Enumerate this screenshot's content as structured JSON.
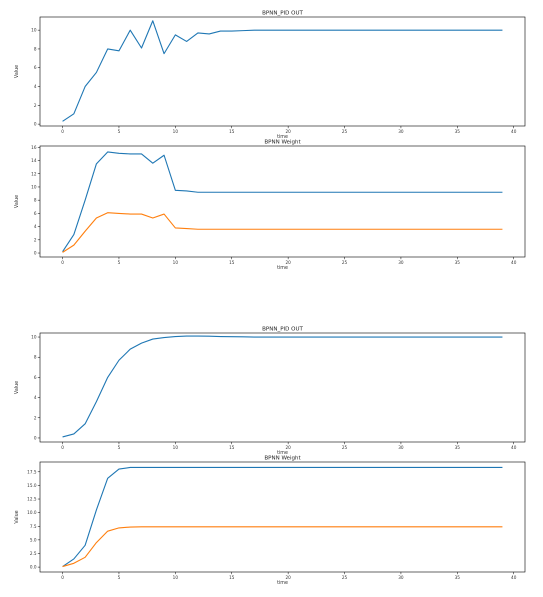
{
  "colors": {
    "series_1": "#1f77b4",
    "series_2": "#ff7f0e",
    "axes": "#000000",
    "background": "#ffffff"
  },
  "chart_data": [
    {
      "type": "line",
      "title": "BPNN_PID OUT",
      "xlabel": "time",
      "ylabel": "Value",
      "xlim": [
        -2,
        41
      ],
      "ylim": [
        -0.2,
        11.4
      ],
      "xticks": [
        0,
        5,
        10,
        15,
        20,
        25,
        30,
        35,
        40
      ],
      "yticks": [
        0,
        2,
        4,
        6,
        8,
        10
      ],
      "grid": false,
      "series": [
        {
          "values": [
            0.3,
            1.1,
            4.0,
            5.5,
            8.0,
            7.8,
            10.0,
            8.1,
            11.0,
            7.5,
            9.5,
            8.8,
            9.7,
            9.6,
            9.9,
            9.9,
            9.95,
            10.0,
            10.0,
            10.0,
            10.0,
            10.0,
            10.0,
            10.0,
            10.0,
            10.0,
            10.0,
            10.0,
            10.0,
            10.0,
            10.0,
            10.0,
            10.0,
            10.0,
            10.0,
            10.0,
            10.0,
            10.0,
            10.0,
            10.0
          ]
        }
      ]
    },
    {
      "type": "line",
      "title": "BPNN Weight",
      "xlabel": "time",
      "ylabel": "Value",
      "xlim": [
        -2,
        41
      ],
      "ylim": [
        -0.6,
        16.2
      ],
      "xticks": [
        0,
        5,
        10,
        15,
        20,
        25,
        30,
        35,
        40
      ],
      "yticks": [
        0,
        2,
        4,
        6,
        8,
        10,
        12,
        14,
        16
      ],
      "grid": false,
      "series": [
        {
          "values": [
            0.2,
            2.8,
            8.0,
            13.5,
            15.3,
            15.1,
            15.0,
            15.0,
            13.6,
            14.8,
            9.5,
            9.4,
            9.2,
            9.2,
            9.2,
            9.2,
            9.2,
            9.2,
            9.2,
            9.2,
            9.2,
            9.2,
            9.2,
            9.2,
            9.2,
            9.2,
            9.2,
            9.2,
            9.2,
            9.2,
            9.2,
            9.2,
            9.2,
            9.2,
            9.2,
            9.2,
            9.2,
            9.2,
            9.2,
            9.2
          ]
        },
        {
          "values": [
            0.1,
            1.2,
            3.3,
            5.3,
            6.1,
            6.0,
            5.9,
            5.9,
            5.3,
            5.9,
            3.8,
            3.7,
            3.6,
            3.6,
            3.6,
            3.6,
            3.6,
            3.6,
            3.6,
            3.6,
            3.6,
            3.6,
            3.6,
            3.6,
            3.6,
            3.6,
            3.6,
            3.6,
            3.6,
            3.6,
            3.6,
            3.6,
            3.6,
            3.6,
            3.6,
            3.6,
            3.6,
            3.6,
            3.6,
            3.6
          ]
        }
      ]
    },
    {
      "type": "line",
      "title": "BPNN_PID OUT",
      "xlabel": "time",
      "ylabel": "Value",
      "xlim": [
        -2,
        41
      ],
      "ylim": [
        -0.4,
        10.4
      ],
      "xticks": [
        0,
        5,
        10,
        15,
        20,
        25,
        30,
        35,
        40
      ],
      "yticks": [
        0,
        2,
        4,
        6,
        8,
        10
      ],
      "grid": false,
      "series": [
        {
          "values": [
            0.1,
            0.4,
            1.4,
            3.6,
            6.0,
            7.7,
            8.8,
            9.4,
            9.8,
            9.95,
            10.05,
            10.1,
            10.1,
            10.08,
            10.05,
            10.03,
            10.02,
            10.0,
            10.0,
            10.0,
            10.0,
            10.0,
            10.0,
            10.0,
            10.0,
            10.0,
            10.0,
            10.0,
            10.0,
            10.0,
            10.0,
            10.0,
            10.0,
            10.0,
            10.0,
            10.0,
            10.0,
            10.0,
            10.0,
            10.0
          ]
        }
      ]
    },
    {
      "type": "line",
      "title": "BPNN Weight",
      "xlabel": "time",
      "ylabel": "Value",
      "xlim": [
        -2,
        41
      ],
      "ylim": [
        -0.9,
        19.3
      ],
      "xticks": [
        0,
        5,
        10,
        15,
        20,
        25,
        30,
        35,
        40
      ],
      "yticks": [
        0.0,
        2.5,
        5.0,
        7.5,
        10.0,
        12.5,
        15.0,
        17.5
      ],
      "ytick_labels": [
        "0.0",
        "2.5",
        "5.0",
        "7.5",
        "10.0",
        "12.5",
        "15.0",
        "17.5"
      ],
      "grid": false,
      "series": [
        {
          "values": [
            0.1,
            1.5,
            4.0,
            10.5,
            16.3,
            18.0,
            18.3,
            18.3,
            18.3,
            18.3,
            18.3,
            18.3,
            18.3,
            18.3,
            18.3,
            18.3,
            18.3,
            18.3,
            18.3,
            18.3,
            18.3,
            18.3,
            18.3,
            18.3,
            18.3,
            18.3,
            18.3,
            18.3,
            18.3,
            18.3,
            18.3,
            18.3,
            18.3,
            18.3,
            18.3,
            18.3,
            18.3,
            18.3,
            18.3,
            18.3
          ]
        },
        {
          "values": [
            0.1,
            0.7,
            1.8,
            4.5,
            6.6,
            7.2,
            7.35,
            7.4,
            7.4,
            7.4,
            7.4,
            7.4,
            7.4,
            7.4,
            7.4,
            7.4,
            7.4,
            7.4,
            7.4,
            7.4,
            7.4,
            7.4,
            7.4,
            7.4,
            7.4,
            7.4,
            7.4,
            7.4,
            7.4,
            7.4,
            7.4,
            7.4,
            7.4,
            7.4,
            7.4,
            7.4,
            7.4,
            7.4,
            7.4,
            7.4
          ]
        }
      ]
    }
  ]
}
